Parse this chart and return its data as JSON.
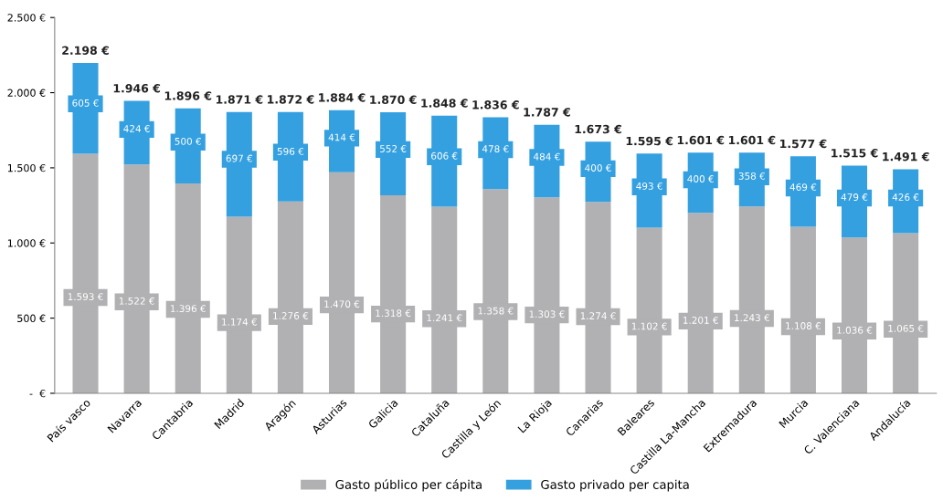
{
  "chart_data": {
    "type": "bar",
    "stacked": true,
    "categories": [
      "País vasco",
      "Navarra",
      "Cantabria",
      "Madrid",
      "Aragón",
      "Asturias",
      "Galicia",
      "Cataluña",
      "Castilla y León",
      "La Rioja",
      "Canarias",
      "Baleares",
      "Castilla La-Mancha",
      "Extremadura",
      "Murcia",
      "C. Valenciana",
      "Andalucía"
    ],
    "series": [
      {
        "name": "Gasto público per cápita",
        "color": "#b1b1b3",
        "values": [
          1593,
          1522,
          1396,
          1174,
          1276,
          1470,
          1318,
          1241,
          1358,
          1303,
          1274,
          1102,
          1201,
          1243,
          1108,
          1036,
          1065
        ],
        "value_labels": [
          "1.593 €",
          "1.522 €",
          "1.396 €",
          "1.174 €",
          "1.276 €",
          "1.470 €",
          "1.318 €",
          "1.241 €",
          "1.358 €",
          "1.303 €",
          "1.274 €",
          "1.102 €",
          "1.201 €",
          "1.243 €",
          "1.108 €",
          "1.036 €",
          "1.065 €"
        ]
      },
      {
        "name": "Gasto privado per capita",
        "color": "#35a0e0",
        "values": [
          605,
          424,
          500,
          697,
          596,
          414,
          552,
          606,
          478,
          484,
          400,
          493,
          400,
          358,
          469,
          479,
          426
        ],
        "value_labels": [
          "605 €",
          "424 €",
          "500 €",
          "697 €",
          "596 €",
          "414 €",
          "552 €",
          "606 €",
          "478 €",
          "484 €",
          "400 €",
          "493 €",
          "400 €",
          "358 €",
          "469 €",
          "479 €",
          "426 €"
        ]
      }
    ],
    "totals": [
      "2.198 €",
      "1.946 €",
      "1.896 €",
      "1.871 €",
      "1.872 €",
      "1.884 €",
      "1.870 €",
      "1.848 €",
      "1.836 €",
      "1.787 €",
      "1.673 €",
      "1.595 €",
      "1.601 €",
      "1.601 €",
      "1.577 €",
      "1.515 €",
      "1.491 €"
    ],
    "ylim": [
      0,
      2500
    ],
    "yticks": [
      {
        "value": 0,
        "label": "-  €"
      },
      {
        "value": 500,
        "label": "500 €"
      },
      {
        "value": 1000,
        "label": "1.000 €"
      },
      {
        "value": 1500,
        "label": "1.500 €"
      },
      {
        "value": 2000,
        "label": "2.000 €"
      },
      {
        "value": 2500,
        "label": "2.500 €"
      }
    ],
    "grid": false,
    "legend": "bottom"
  }
}
